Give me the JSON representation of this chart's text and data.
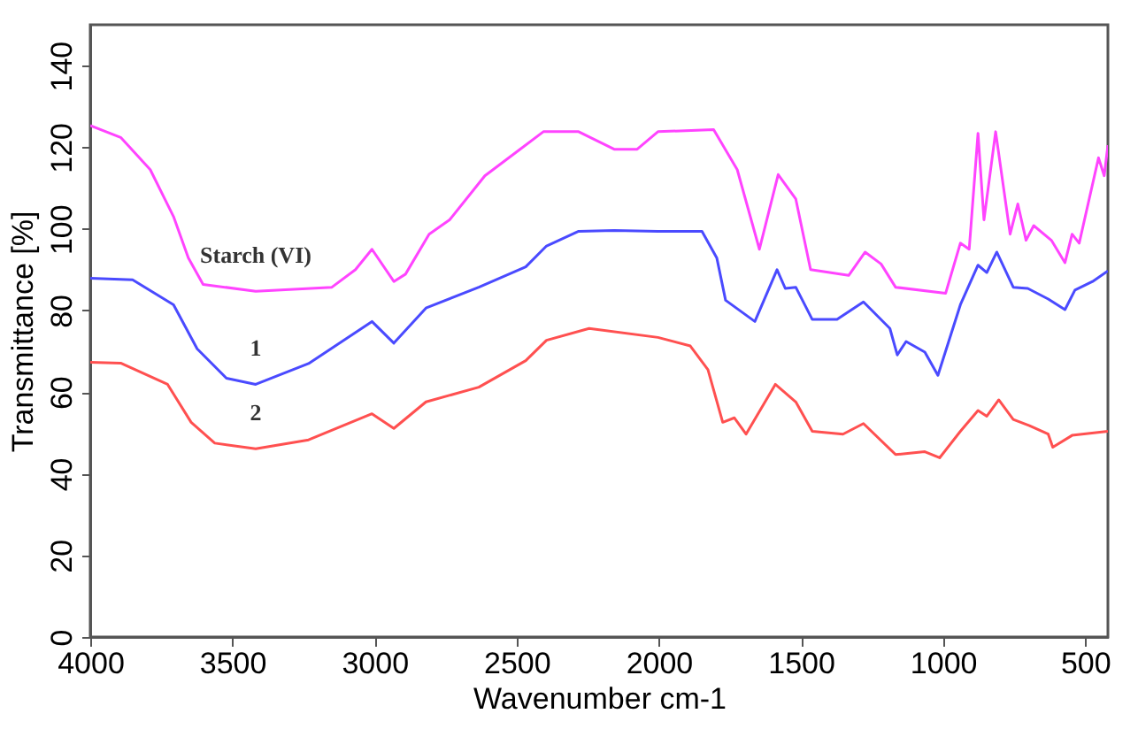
{
  "chart_data": {
    "type": "line",
    "xlabel": "Wavenumber cm-1",
    "ylabel": "Transmittance [%]",
    "xlim": [
      4000,
      420
    ],
    "xticks": [
      4000,
      3500,
      3000,
      2500,
      2000,
      1500,
      1000,
      500
    ],
    "ylim": [
      0,
      150
    ],
    "yticks": [
      0,
      20,
      40,
      60,
      80,
      100,
      120,
      140
    ],
    "grid": false,
    "legend": false,
    "marker": "none",
    "line_style": "solid",
    "annotations": [
      "Starch (VI)",
      "1",
      "2"
    ],
    "series": [
      {
        "color": "#ff44ff",
        "x": [
          4000,
          3893,
          3789,
          3707,
          3655,
          3603,
          3418,
          3150,
          3067,
          3009,
          2932,
          2891,
          2808,
          2736,
          2612,
          2488,
          2406,
          2282,
          2157,
          2076,
          2003,
          1807,
          1724,
          1646,
          1580,
          1518,
          1466,
          1332,
          1274,
          1218,
          1167,
          991,
          939,
          908,
          877,
          856,
          815,
          764,
          737,
          708,
          681,
          619,
          571,
          546,
          521,
          453,
          433,
          420
        ],
        "values": [
          125.3,
          122.4,
          114.5,
          103,
          92.9,
          86.4,
          84.7,
          85.7,
          90,
          95,
          87.1,
          88.9,
          98.7,
          102.2,
          113,
          119.5,
          123.8,
          123.8,
          119.5,
          119.5,
          123.8,
          124.3,
          114.5,
          95,
          113.3,
          107.3,
          90,
          88.6,
          94.3,
          91.4,
          85.7,
          84.2,
          96.5,
          95,
          123.4,
          102.2,
          123.8,
          98.7,
          106.1,
          97.2,
          100.8,
          97.2,
          91.7,
          98.7,
          96.5,
          117.4,
          113,
          120.5
        ]
      },
      {
        "color": "#4a4aff",
        "x": [
          4000,
          3851,
          3707,
          3624,
          3521,
          3418,
          3232,
          3009,
          2932,
          2819,
          2633,
          2468,
          2395,
          2282,
          2157,
          2003,
          1848,
          1796,
          1765,
          1662,
          1584,
          1555,
          1518,
          1460,
          1373,
          1280,
          1187,
          1161,
          1130,
          1064,
          1018,
          939,
          877,
          846,
          811,
          753,
          702,
          630,
          571,
          536,
          474,
          420
        ],
        "values": [
          87.9,
          87.5,
          81.4,
          70.6,
          63.4,
          61.9,
          67,
          77.3,
          72,
          80.6,
          85.7,
          90.7,
          95.8,
          99.4,
          99.6,
          99.4,
          99.4,
          92.9,
          82.5,
          77.3,
          90,
          85.4,
          85.7,
          77.8,
          77.8,
          82.1,
          75.6,
          69.1,
          72.4,
          69.8,
          64.1,
          81.4,
          91.1,
          89.3,
          94.3,
          85.7,
          85.4,
          82.8,
          80.2,
          85,
          87.1,
          89.7
        ]
      },
      {
        "color": "#ff5050",
        "x": [
          4000,
          3893,
          3728,
          3645,
          3562,
          3418,
          3232,
          3009,
          2932,
          2819,
          2633,
          2468,
          2395,
          2245,
          2003,
          1889,
          1827,
          1775,
          1734,
          1693,
          1590,
          1518,
          1460,
          1352,
          1280,
          1167,
          1064,
          1012,
          939,
          877,
          846,
          804,
          753,
          696,
          630,
          614,
          546,
          420
        ],
        "values": [
          67.3,
          67.1,
          61.9,
          52.6,
          47.5,
          46.1,
          48.3,
          54.7,
          51.1,
          57.6,
          61.2,
          67.7,
          72.7,
          75.6,
          73.4,
          71.3,
          65.5,
          52.6,
          53.7,
          49.7,
          61.9,
          57.6,
          50.4,
          49.7,
          52.3,
          44.7,
          45.4,
          43.9,
          50.4,
          55.5,
          54.1,
          58.1,
          53.3,
          51.8,
          49.7,
          46.5,
          49.4,
          50.4
        ]
      }
    ]
  }
}
